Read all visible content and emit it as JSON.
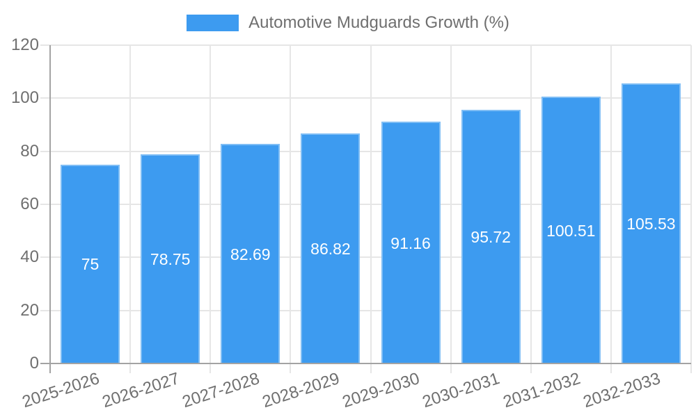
{
  "colors": {
    "bar": "#3d9bf0",
    "grid": "#e6e6e6",
    "axis": "#a3a3a3",
    "text": "#6f6f6f",
    "bar_value_text": "#ffffff"
  },
  "legend": {
    "label": "Automotive Mudguards Growth (%)"
  },
  "chart_data": {
    "type": "bar",
    "title": "Automotive Mudguards Growth (%)",
    "legend_label": "Automotive Mudguards Growth (%)",
    "legend_position": "top",
    "categories": [
      "2025-2026",
      "2026-2027",
      "2027-2028",
      "2028-2029",
      "2029-2030",
      "2030-2031",
      "2031-2032",
      "2032-2033"
    ],
    "values": [
      75,
      78.75,
      82.69,
      86.82,
      91.16,
      95.72,
      100.51,
      105.53
    ],
    "value_labels": [
      "75",
      "78.75",
      "82.69",
      "86.82",
      "91.16",
      "95.72",
      "100.51",
      "105.53"
    ],
    "xlabel": "",
    "ylabel": "",
    "ylim": [
      0,
      120
    ],
    "yticks": [
      0,
      20,
      40,
      60,
      80,
      100,
      120
    ],
    "grid": true,
    "data_labels_inside_bars": true,
    "x_tick_rotation_deg": -18
  }
}
